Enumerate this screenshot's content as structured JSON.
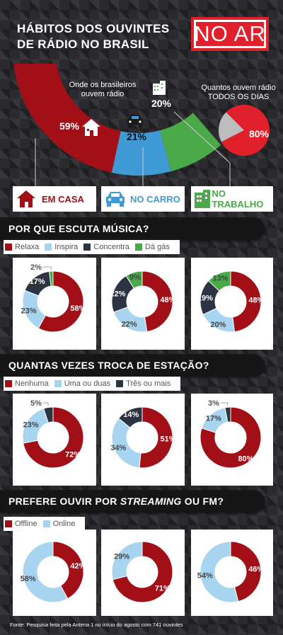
{
  "header": {
    "title_line1": "HÁBITOS DOS OUVINTES",
    "title_line2": "DE RÁDIO NO BRASIL",
    "badge": "NO AR"
  },
  "colors": {
    "red": "#a30f16",
    "light_blue": "#a7d5f0",
    "dark": "#2c3441",
    "green": "#4aa948",
    "blue": "#3f9ad6",
    "bright_red": "#e0202a"
  },
  "top": {
    "where_label_line1": "Onde os brasileiros",
    "where_label_line2": "ouvem rádio",
    "daily_label_line1": "Quantos ouvem rádio",
    "daily_label_line2": "TODOS OS DIAS"
  },
  "columns": [
    {
      "label": "EM CASA",
      "icon": "house-icon"
    },
    {
      "label": "NO CARRO",
      "icon": "car-icon"
    },
    {
      "label": "NO TRABALHO",
      "icon": "building-icon"
    }
  ],
  "sections": [
    {
      "title": "POR QUE ESCUTA MÚSICA?",
      "legend": [
        "Relaxa",
        "Inspira",
        "Concentra",
        "Dá gás"
      ]
    },
    {
      "title": "QUANTAS VEZES TROCA DE ESTAÇÃO?",
      "legend": [
        "Nenhuma",
        "Uma ou duas",
        "Três ou mais"
      ]
    },
    {
      "title_pre": "PREFERE OUVIR POR ",
      "title_em": "STREAMING",
      "title_post": " OU FM?",
      "legend": [
        "Offline",
        "Online"
      ]
    }
  ],
  "chart_data": [
    {
      "type": "pie",
      "title": "Onde os brasileiros ouvem rádio",
      "categories": [
        "Em casa",
        "No carro",
        "No trabalho"
      ],
      "values": [
        59,
        21,
        20
      ],
      "labels": [
        "59%",
        "21%",
        "20%"
      ]
    },
    {
      "type": "pie",
      "title": "Quantos ouvem rádio TODOS OS DIAS",
      "categories": [
        "Todos os dias",
        "Outros"
      ],
      "values": [
        80,
        20
      ],
      "labels": [
        "80%",
        ""
      ]
    },
    {
      "type": "pie",
      "title": "POR QUE ESCUTA MÚSICA?",
      "categories": [
        "Relaxa",
        "Inspira",
        "Concentra",
        "Dá gás"
      ],
      "series": [
        {
          "name": "EM CASA",
          "values": [
            58,
            23,
            17,
            2
          ],
          "labels": [
            "58%",
            "23%",
            "17%",
            "2%"
          ]
        },
        {
          "name": "NO CARRO",
          "values": [
            48,
            22,
            22,
            9
          ],
          "labels": [
            "48%",
            "22%",
            "22%",
            "9%"
          ]
        },
        {
          "name": "NO TRABALHO",
          "values": [
            48,
            20,
            19,
            13
          ],
          "labels": [
            "48%",
            "20%",
            "19%",
            "13%"
          ]
        }
      ]
    },
    {
      "type": "pie",
      "title": "QUANTAS VEZES TROCA DE ESTAÇÃO?",
      "categories": [
        "Nenhuma",
        "Uma ou duas",
        "Três ou mais"
      ],
      "series": [
        {
          "name": "EM CASA",
          "values": [
            72,
            23,
            5
          ],
          "labels": [
            "72%",
            "23%",
            "5%"
          ]
        },
        {
          "name": "NO CARRO",
          "values": [
            51,
            34,
            14
          ],
          "labels": [
            "51%",
            "34%",
            "14%"
          ]
        },
        {
          "name": "NO TRABALHO",
          "values": [
            80,
            17,
            3
          ],
          "labels": [
            "80%",
            "17%",
            "3%"
          ]
        }
      ]
    },
    {
      "type": "pie",
      "title": "PREFERE OUVIR POR STREAMING OU FM?",
      "categories": [
        "Offline",
        "Online"
      ],
      "series": [
        {
          "name": "EM CASA",
          "values": [
            42,
            58
          ],
          "labels": [
            "42%",
            "58%"
          ]
        },
        {
          "name": "NO CARRO",
          "values": [
            71,
            29
          ],
          "labels": [
            "71%",
            "29%"
          ]
        },
        {
          "name": "NO TRABALHO",
          "values": [
            46,
            54
          ],
          "labels": [
            "46%",
            "54%"
          ]
        }
      ]
    }
  ],
  "footer": "Fonte: Pesquisa feita pela Antena 1 no início do agosto com 741 ouvintes"
}
